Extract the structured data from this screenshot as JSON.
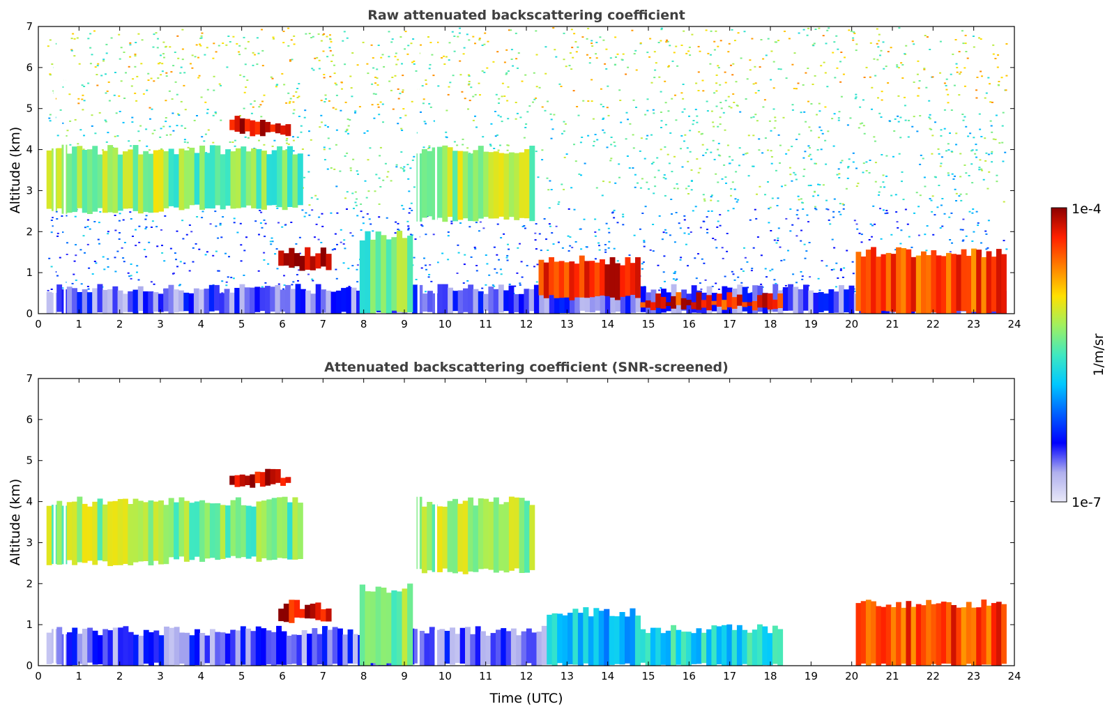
{
  "chart_data": [
    {
      "type": "heatmap",
      "title": "Raw attenuated backscattering coefficient",
      "xlabel": "",
      "ylabel": "Altitude (km)",
      "xlim": [
        0,
        24
      ],
      "ylim": [
        0,
        7
      ],
      "x_ticks": [
        0,
        1,
        2,
        3,
        4,
        5,
        6,
        7,
        8,
        9,
        10,
        11,
        12,
        13,
        14,
        15,
        16,
        17,
        18,
        19,
        20,
        21,
        22,
        23,
        24
      ],
      "y_ticks": [
        0,
        1,
        2,
        3,
        4,
        5,
        6,
        7
      ],
      "layers": [
        {
          "name": "near-surface",
          "t_start": 0.2,
          "t_end": 23.8,
          "z_bottom": 0.0,
          "z_top": 0.6,
          "level": 0.15
        },
        {
          "name": "morning cloud deck",
          "t_start": 0.2,
          "t_end": 3.2,
          "z_bottom": 2.5,
          "z_top": 4.0,
          "level": 0.6
        },
        {
          "name": "cloud deck",
          "t_start": 3.2,
          "t_end": 6.5,
          "z_bottom": 2.6,
          "z_top": 4.0,
          "level": 0.55
        },
        {
          "name": "thin layer",
          "t_start": 4.7,
          "t_end": 6.2,
          "z_bottom": 4.4,
          "z_top": 4.7,
          "level": 0.95
        },
        {
          "name": "low cloud",
          "t_start": 5.9,
          "t_end": 7.2,
          "z_bottom": 1.1,
          "z_top": 1.5,
          "level": 0.95
        },
        {
          "name": "convection",
          "t_start": 7.9,
          "t_end": 9.2,
          "z_bottom": 0.0,
          "z_top": 1.9,
          "level": 0.55
        },
        {
          "name": "mid cloud deck",
          "t_start": 9.3,
          "t_end": 12.2,
          "z_bottom": 2.3,
          "z_top": 4.0,
          "level": 0.6
        },
        {
          "name": "boundary layer top",
          "t_start": 12.3,
          "t_end": 14.8,
          "z_bottom": 0.4,
          "z_top": 1.3,
          "level": 0.9
        },
        {
          "name": "fog layer",
          "t_start": 14.8,
          "t_end": 18.3,
          "z_bottom": 0.15,
          "z_top": 0.4,
          "level": 0.9
        },
        {
          "name": "afternoon cloud",
          "t_start": 20.1,
          "t_end": 23.8,
          "z_bottom": 0.0,
          "z_top": 1.5,
          "level": 0.85
        }
      ],
      "gaps_hours": [
        0.4,
        0.65,
        9.35,
        9.78
      ]
    },
    {
      "type": "heatmap",
      "title": "Attenuated backscattering coefficient (SNR-screened)",
      "xlabel": "Time (UTC)",
      "ylabel": "Altitude (km)",
      "xlim": [
        0,
        24
      ],
      "ylim": [
        0,
        7
      ],
      "x_ticks": [
        0,
        1,
        2,
        3,
        4,
        5,
        6,
        7,
        8,
        9,
        10,
        11,
        12,
        13,
        14,
        15,
        16,
        17,
        18,
        19,
        20,
        21,
        22,
        23,
        24
      ],
      "y_ticks": [
        0,
        1,
        2,
        3,
        4,
        5,
        6,
        7
      ],
      "layers": [
        {
          "name": "near-surface",
          "t_start": 0.2,
          "t_end": 12.5,
          "z_bottom": 0.0,
          "z_top": 0.85,
          "level": 0.15
        },
        {
          "name": "morning cloud deck",
          "t_start": 0.2,
          "t_end": 3.2,
          "z_bottom": 2.5,
          "z_top": 4.0,
          "level": 0.6
        },
        {
          "name": "cloud deck",
          "t_start": 3.2,
          "t_end": 6.5,
          "z_bottom": 2.6,
          "z_top": 4.0,
          "level": 0.55
        },
        {
          "name": "thin layer",
          "t_start": 4.7,
          "t_end": 6.2,
          "z_bottom": 4.4,
          "z_top": 4.7,
          "level": 0.95
        },
        {
          "name": "low cloud",
          "t_start": 5.9,
          "t_end": 7.2,
          "z_bottom": 1.1,
          "z_top": 1.5,
          "level": 0.95
        },
        {
          "name": "convection",
          "t_start": 7.9,
          "t_end": 9.2,
          "z_bottom": 0.0,
          "z_top": 1.9,
          "level": 0.55
        },
        {
          "name": "mid cloud deck",
          "t_start": 9.3,
          "t_end": 12.2,
          "z_bottom": 2.3,
          "z_top": 4.0,
          "level": 0.6
        },
        {
          "name": "boundary layer",
          "t_start": 12.5,
          "t_end": 14.8,
          "z_bottom": 0.0,
          "z_top": 1.3,
          "level": 0.4
        },
        {
          "name": "fog layer",
          "t_start": 14.8,
          "t_end": 18.3,
          "z_bottom": 0.0,
          "z_top": 0.9,
          "level": 0.45
        },
        {
          "name": "afternoon cloud",
          "t_start": 20.1,
          "t_end": 23.8,
          "z_bottom": 0.0,
          "z_top": 1.5,
          "level": 0.85
        }
      ],
      "gaps_hours": [
        0.4,
        0.65,
        9.35,
        9.78
      ]
    }
  ],
  "colorbar": {
    "label": "1/m/sr",
    "max_label": "1e-4",
    "min_label": "1e-7",
    "colors": [
      "#e8e8f8",
      "#b0b0ee",
      "#0000ff",
      "#0060ff",
      "#00c8ff",
      "#40e8c0",
      "#a0f060",
      "#ffe000",
      "#ff8000",
      "#ff2000",
      "#8b0000"
    ]
  }
}
